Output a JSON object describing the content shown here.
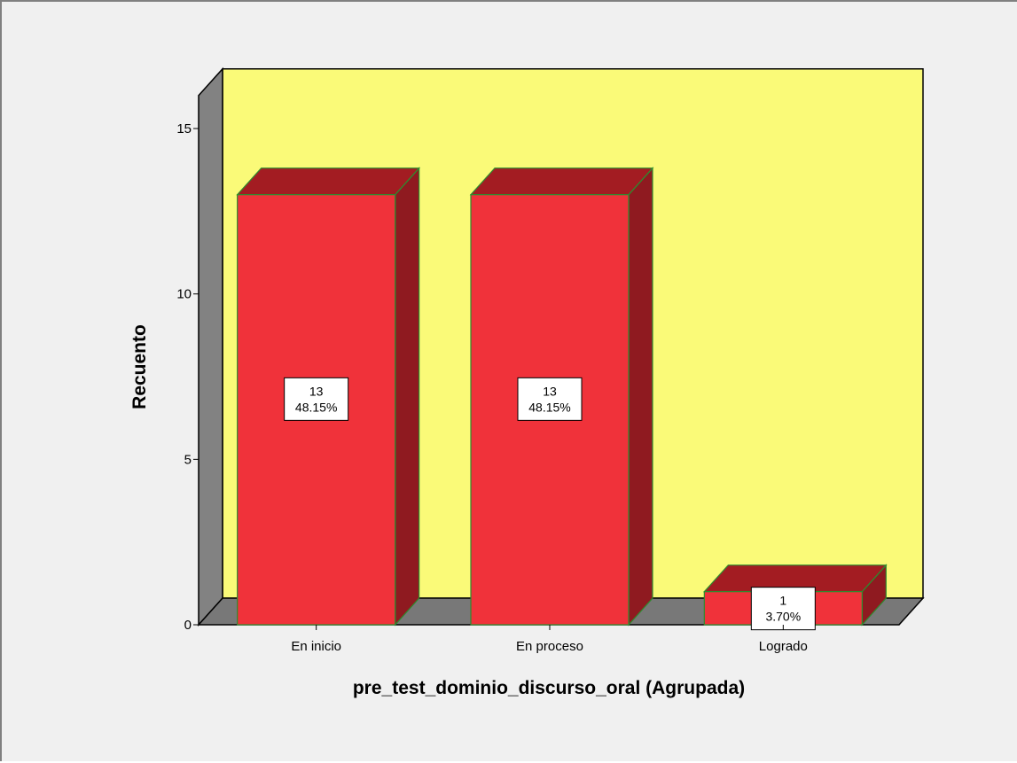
{
  "chart_data": {
    "type": "bar",
    "categories": [
      "En inicio",
      "En proceso",
      "Logrado"
    ],
    "values": [
      13,
      13,
      1
    ],
    "data_labels": [
      {
        "count": "13",
        "percent": "48.15%"
      },
      {
        "count": "13",
        "percent": "48.15%"
      },
      {
        "count": "1",
        "percent": "3.70%"
      }
    ],
    "title": "",
    "xlabel": "pre_test_dominio_discurso_oral (Agrupada)",
    "ylabel": "Recuento",
    "ylim": [
      0,
      16
    ],
    "yticks": [
      0,
      5,
      10,
      15
    ],
    "ytick_labels": [
      "0",
      "5",
      "10",
      "15"
    ],
    "grid": false,
    "legend": "none",
    "three_d": true
  },
  "colors": {
    "bar_front": "#f0323a",
    "bar_top": "#a31c22",
    "bar_side": "#8f1a20",
    "bar_edge": "#2e8b2e",
    "back_wall": "#fafa78",
    "side_wall": "#828282",
    "floor": "#787878",
    "frame_bg": "#f0f0f0"
  }
}
